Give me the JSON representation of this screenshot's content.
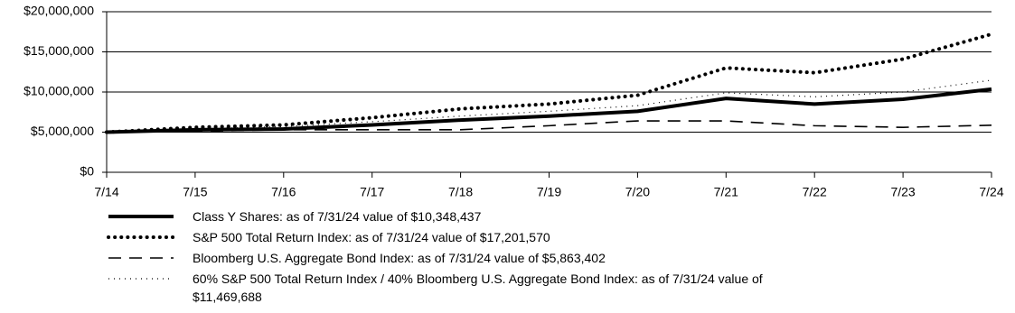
{
  "chart_data": {
    "type": "line",
    "categories": [
      "7/14",
      "7/15",
      "7/16",
      "7/17",
      "7/18",
      "7/19",
      "7/20",
      "7/21",
      "7/22",
      "7/23",
      "7/24"
    ],
    "ylim": [
      0,
      20000000
    ],
    "yticks": [
      {
        "value": 0,
        "label": "$0"
      },
      {
        "value": 5000000,
        "label": "$5,000,000"
      },
      {
        "value": 10000000,
        "label": "$10,000,000"
      },
      {
        "value": 15000000,
        "label": "$15,000,000"
      },
      {
        "value": 20000000,
        "label": "$20,000,000"
      }
    ],
    "grid": true,
    "series": [
      {
        "name": "Class Y Shares: as of 7/31/24 value of $10,348,437",
        "color": "#000000",
        "style": "solid",
        "values": [
          5000000,
          5300000,
          5400000,
          5900000,
          6500000,
          7000000,
          7600000,
          9200000,
          8500000,
          9100000,
          10348437
        ]
      },
      {
        "name": "S&P 500 Total Return Index: as of 7/31/24 value of $17,201,570",
        "color": "#000000",
        "style": "bold-dotted",
        "values": [
          5000000,
          5600000,
          5900000,
          6800000,
          7900000,
          8500000,
          9600000,
          13000000,
          12400000,
          14100000,
          17201570
        ]
      },
      {
        "name": "Bloomberg U.S. Aggregate Bond Index: as of 7/31/24 value of $5,863,402",
        "color": "#000000",
        "style": "dashed",
        "values": [
          5000000,
          5100000,
          5300000,
          5300000,
          5300000,
          5800000,
          6400000,
          6400000,
          5800000,
          5600000,
          5863402
        ]
      },
      {
        "name": "60% S&P 500 Total Return Index / 40% Bloomberg U.S. Aggregate Bond Index: as of 7/31/24 value of $11,469,688",
        "color": "#000000",
        "style": "fine-dotted",
        "values": [
          5000000,
          5400000,
          5700000,
          6300000,
          7000000,
          7600000,
          8300000,
          9900000,
          9400000,
          10000000,
          11469688
        ]
      }
    ]
  }
}
